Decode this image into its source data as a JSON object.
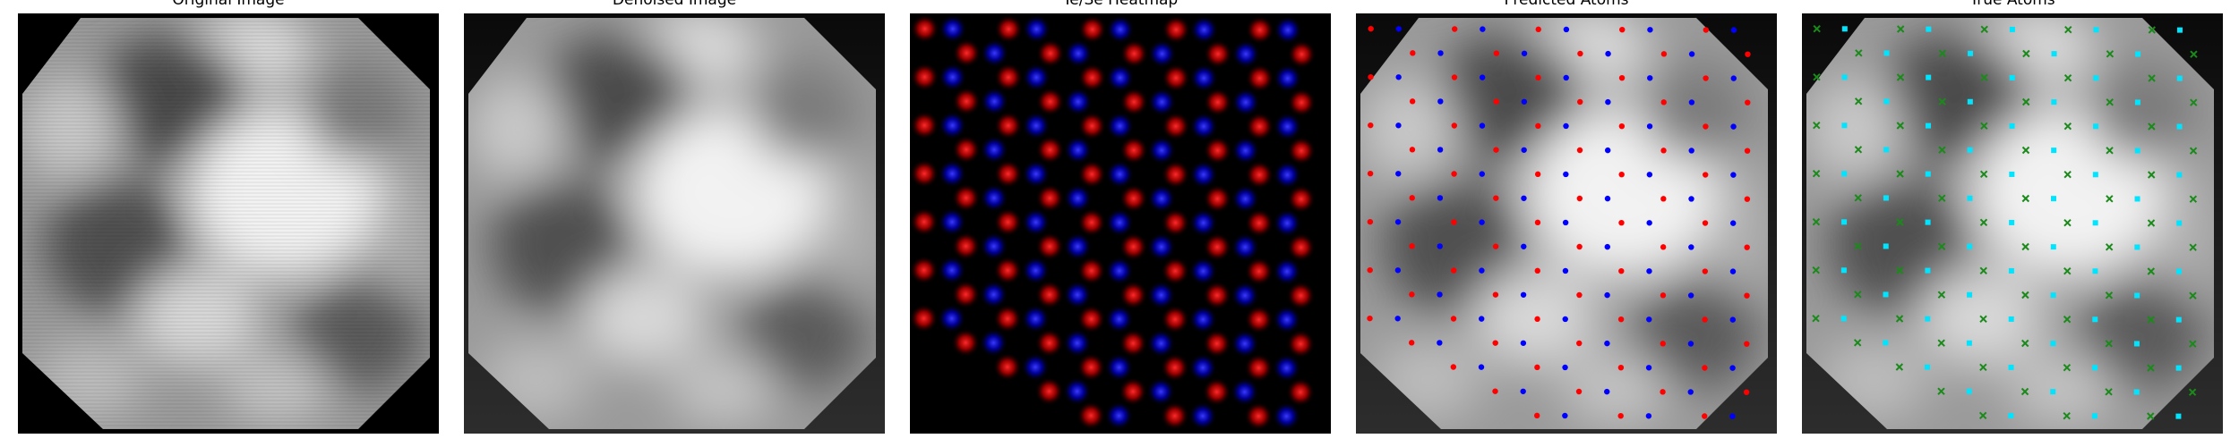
{
  "panels": [
    {
      "id": "original",
      "title": "Original Image"
    },
    {
      "id": "denoised",
      "title": "Denoised Image"
    },
    {
      "id": "heatmap",
      "title": "Te/Se Heatmap"
    },
    {
      "id": "predicted",
      "title": "Predicted Atoms"
    },
    {
      "id": "true",
      "title": "True Atoms"
    }
  ],
  "colors": {
    "background_black": "#000000",
    "frame_dark": "#262626",
    "te_red": "#ff1a1a",
    "se_blue": "#2222ff",
    "predicted_red": "#ff0000",
    "predicted_blue": "#0000ff",
    "true_cyan": "#00e5ff",
    "true_green": "#1a8a1a"
  },
  "icons": {
    "true_te_marker": "x-marker",
    "true_se_marker": "dot-marker"
  }
}
